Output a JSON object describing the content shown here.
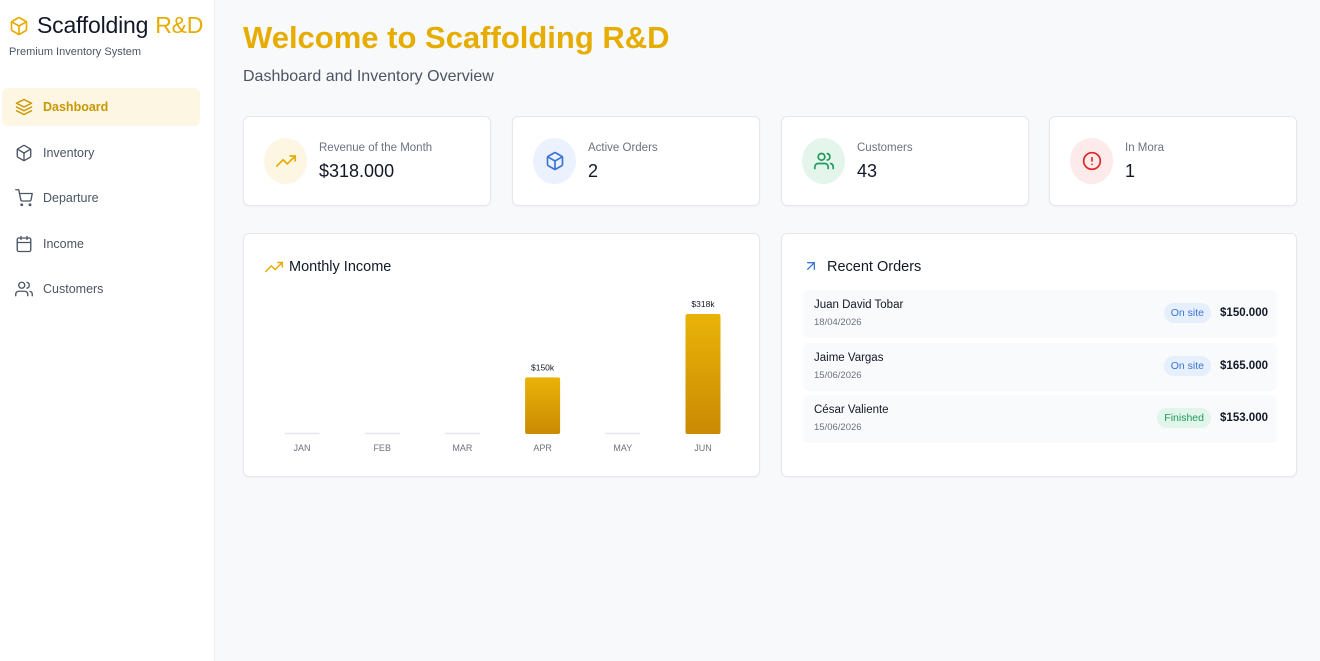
{
  "brand": {
    "name": "Scaffolding",
    "accent": "R&D",
    "subtitle": "Premium Inventory System",
    "icon": "box-icon"
  },
  "sidebar": {
    "items": [
      {
        "label": "Dashboard",
        "icon": "layers-icon",
        "active": true
      },
      {
        "label": "Inventory",
        "icon": "package-icon",
        "active": false
      },
      {
        "label": "Departure",
        "icon": "cart-icon",
        "active": false
      },
      {
        "label": "Income",
        "icon": "calendar-icon",
        "active": false
      },
      {
        "label": "Customers",
        "icon": "users-icon",
        "active": false
      }
    ]
  },
  "header": {
    "title": "Welcome to Scaffolding R&D",
    "subtitle": "Dashboard and Inventory Overview"
  },
  "stats": [
    {
      "label": "Revenue of the Month",
      "value": "$318.000",
      "icon": "trending-up-icon",
      "color": "#e6ac00"
    },
    {
      "label": "Active Orders",
      "value": "2",
      "icon": "package-icon",
      "color": "#3b74d6"
    },
    {
      "label": "Customers",
      "value": "43",
      "icon": "users-icon",
      "color": "#1e9a5b"
    },
    {
      "label": "In Mora",
      "value": "1",
      "icon": "alert-circle-icon",
      "color": "#dc2626"
    }
  ],
  "monthly_income": {
    "title": "Monthly Income",
    "icon": "trending-up-icon"
  },
  "recent_orders": {
    "title": "Recent Orders",
    "icon": "arrow-up-right-icon",
    "orders": [
      {
        "name": "Juan David Tobar",
        "date": "18/04/2026",
        "status": "On site",
        "amount": "$150.000"
      },
      {
        "name": "Jaime Vargas",
        "date": "15/06/2026",
        "status": "On site",
        "amount": "$165.000"
      },
      {
        "name": "César Valiente",
        "date": "15/06/2026",
        "status": "Finished",
        "amount": "$153.000"
      }
    ]
  },
  "colors": {
    "accent": "#e6ac00",
    "bar_top": "#eab308",
    "bar_bottom": "#ca8a04"
  },
  "chart_data": {
    "type": "bar",
    "title": "Monthly Income",
    "categories": [
      "JAN",
      "FEB",
      "MAR",
      "APR",
      "MAY",
      "JUN"
    ],
    "values": [
      0,
      0,
      0,
      150000,
      0,
      318000
    ],
    "data_labels": [
      "",
      "",
      "",
      "$150k",
      "",
      "$318k"
    ],
    "ylim": [
      0,
      318000
    ],
    "grid": false
  }
}
